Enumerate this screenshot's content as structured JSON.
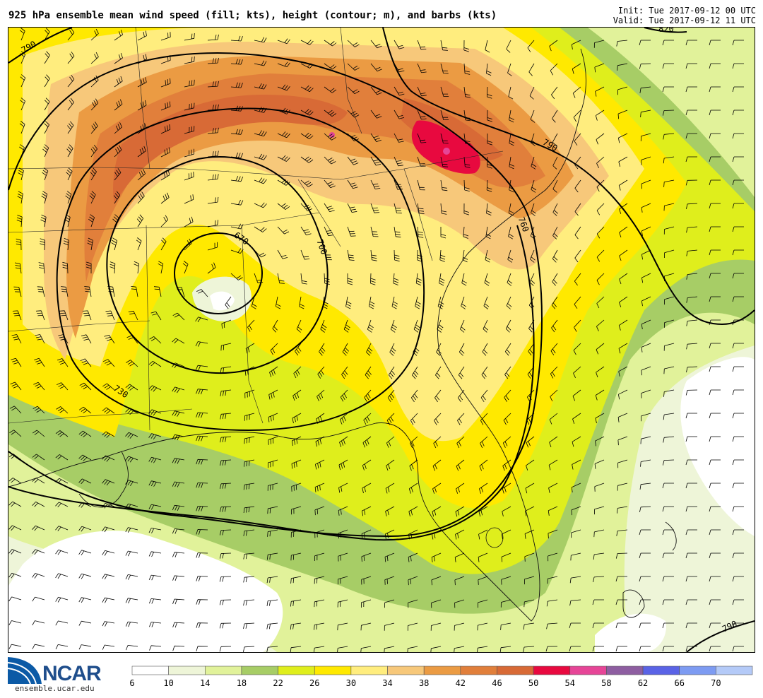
{
  "header": {
    "title": "925 hPa ensemble mean wind speed (fill; kts), height (contour; m), and barbs (kts)",
    "init": "Init: Tue 2017-09-12 00 UTC",
    "valid": "Valid: Tue 2017-09-12 11 UTC"
  },
  "logo": {
    "name": "NCAR",
    "url": "ensemble.ucar.edu"
  },
  "contours": {
    "labels": [
      "670",
      "700",
      "730",
      "760",
      "790",
      "790",
      "790",
      "820"
    ]
  },
  "colorbar": {
    "ticks": [
      "6",
      "10",
      "14",
      "18",
      "22",
      "26",
      "30",
      "34",
      "38",
      "42",
      "46",
      "50",
      "54",
      "58",
      "62",
      "66",
      "70"
    ],
    "colors": [
      "#ffffff",
      "#eef5d8",
      "#e1f29a",
      "#a7cd66",
      "#dfee1c",
      "#ffe900",
      "#ffed7e",
      "#f7c87a",
      "#eb9b43",
      "#e17f3b",
      "#d86a36",
      "#e8093f",
      "#e64597",
      "#8e5ea1",
      "#5a63e6",
      "#7d9bf2",
      "#b4caf8"
    ]
  }
}
